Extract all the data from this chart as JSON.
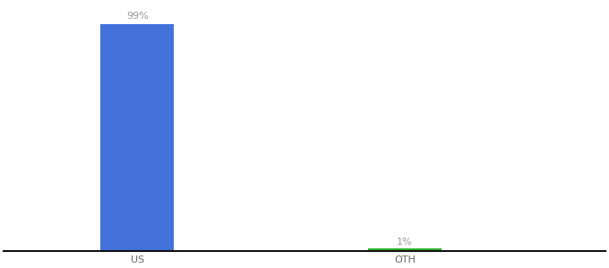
{
  "categories": [
    "US",
    "OTH"
  ],
  "values": [
    99,
    1
  ],
  "bar_colors": [
    "#4472db",
    "#2db52d"
  ],
  "bar_labels": [
    "99%",
    "1%"
  ],
  "ylim": [
    0,
    108
  ],
  "background_color": "#ffffff",
  "label_color": "#999999",
  "label_fontsize": 8,
  "tick_fontsize": 8,
  "tick_color": "#666666",
  "bar_width": 0.55
}
